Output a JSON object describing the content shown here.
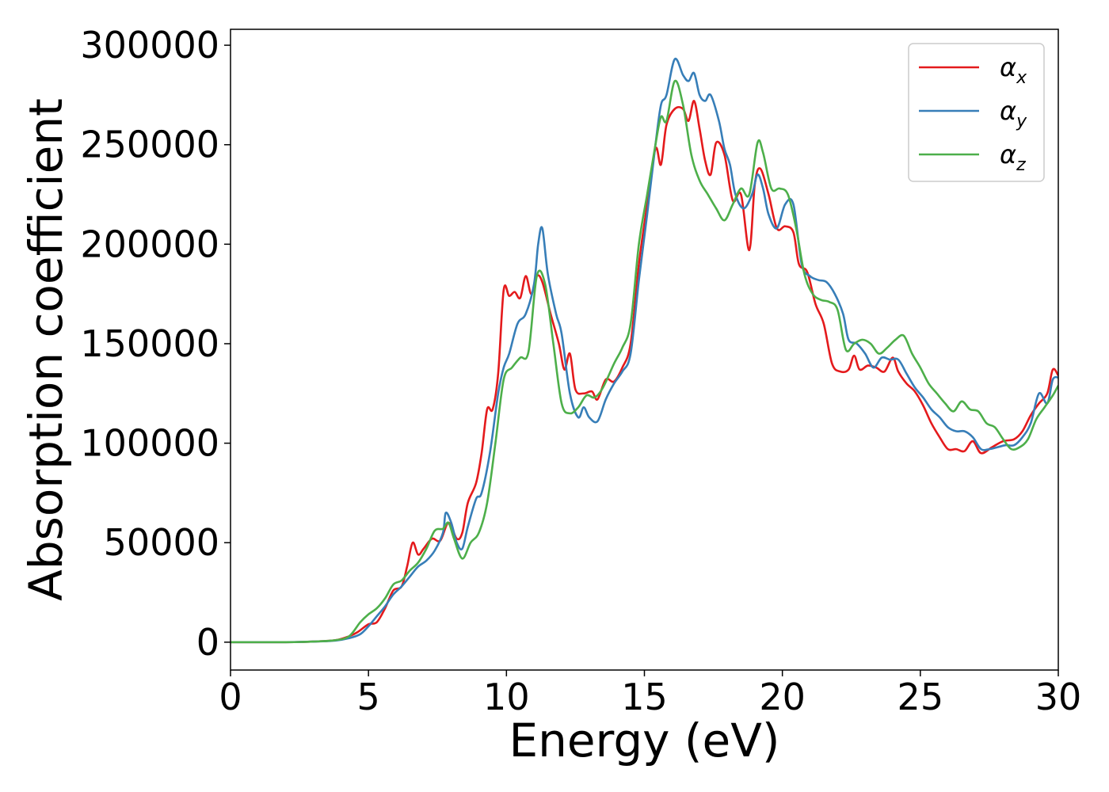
{
  "chart_data": {
    "type": "line",
    "title": "",
    "xlabel": "Energy (eV)",
    "ylabel": "Absorption coefficient",
    "xlim": [
      0,
      30
    ],
    "ylim": [
      -14000,
      308000
    ],
    "xticks": [
      0,
      5,
      10,
      15,
      20,
      25,
      30
    ],
    "yticks": [
      0,
      50000,
      100000,
      150000,
      200000,
      250000,
      300000
    ],
    "grid": false,
    "legend_position": "top-right",
    "series": [
      {
        "name": "αx",
        "label_base": "α",
        "label_sub": "x",
        "color": "#e41a1c",
        "points": [
          [
            0,
            0
          ],
          [
            2,
            0
          ],
          [
            3,
            300
          ],
          [
            3.8,
            1000
          ],
          [
            4.3,
            3000
          ],
          [
            4.6,
            5000
          ],
          [
            5,
            9000
          ],
          [
            5.3,
            10000
          ],
          [
            5.6,
            17000
          ],
          [
            5.9,
            26000
          ],
          [
            6.2,
            28000
          ],
          [
            6.4,
            38000
          ],
          [
            6.6,
            50000
          ],
          [
            6.8,
            44000
          ],
          [
            7,
            47000
          ],
          [
            7.3,
            52000
          ],
          [
            7.6,
            51000
          ],
          [
            7.9,
            60000
          ],
          [
            8.2,
            52000
          ],
          [
            8.4,
            55000
          ],
          [
            8.6,
            70000
          ],
          [
            8.9,
            80000
          ],
          [
            9.1,
            95000
          ],
          [
            9.3,
            117000
          ],
          [
            9.5,
            117000
          ],
          [
            9.7,
            135000
          ],
          [
            9.9,
            177000
          ],
          [
            10.1,
            174000
          ],
          [
            10.3,
            176000
          ],
          [
            10.5,
            173000
          ],
          [
            10.7,
            184000
          ],
          [
            10.9,
            175000
          ],
          [
            11.1,
            184000
          ],
          [
            11.3,
            181000
          ],
          [
            11.6,
            165000
          ],
          [
            11.9,
            150000
          ],
          [
            12.1,
            137000
          ],
          [
            12.3,
            145000
          ],
          [
            12.5,
            127000
          ],
          [
            12.8,
            125000
          ],
          [
            13.1,
            126000
          ],
          [
            13.3,
            122000
          ],
          [
            13.6,
            132000
          ],
          [
            13.9,
            131000
          ],
          [
            14.2,
            138000
          ],
          [
            14.5,
            150000
          ],
          [
            14.8,
            190000
          ],
          [
            15.1,
            220000
          ],
          [
            15.4,
            248000
          ],
          [
            15.6,
            240000
          ],
          [
            15.8,
            260000
          ],
          [
            16.1,
            268000
          ],
          [
            16.4,
            268000
          ],
          [
            16.6,
            262000
          ],
          [
            16.8,
            272000
          ],
          [
            17,
            258000
          ],
          [
            17.2,
            242000
          ],
          [
            17.4,
            235000
          ],
          [
            17.6,
            251000
          ],
          [
            17.9,
            245000
          ],
          [
            18.2,
            222000
          ],
          [
            18.5,
            225000
          ],
          [
            18.8,
            197000
          ],
          [
            19,
            230000
          ],
          [
            19.2,
            238000
          ],
          [
            19.5,
            225000
          ],
          [
            19.8,
            208000
          ],
          [
            20.1,
            209000
          ],
          [
            20.4,
            206000
          ],
          [
            20.6,
            190000
          ],
          [
            20.9,
            186000
          ],
          [
            21.2,
            170000
          ],
          [
            21.5,
            160000
          ],
          [
            21.8,
            140000
          ],
          [
            22.1,
            136000
          ],
          [
            22.4,
            137000
          ],
          [
            22.6,
            144000
          ],
          [
            22.8,
            137000
          ],
          [
            23.1,
            139000
          ],
          [
            23.4,
            138000
          ],
          [
            23.7,
            136000
          ],
          [
            24,
            143000
          ],
          [
            24.2,
            136000
          ],
          [
            24.5,
            130000
          ],
          [
            24.8,
            126000
          ],
          [
            25.1,
            119000
          ],
          [
            25.4,
            110000
          ],
          [
            25.7,
            103000
          ],
          [
            26,
            97000
          ],
          [
            26.3,
            97000
          ],
          [
            26.6,
            96000
          ],
          [
            26.9,
            101000
          ],
          [
            27.2,
            95000
          ],
          [
            27.6,
            98000
          ],
          [
            28,
            101000
          ],
          [
            28.4,
            102000
          ],
          [
            28.7,
            106000
          ],
          [
            29,
            114000
          ],
          [
            29.3,
            120000
          ],
          [
            29.6,
            125000
          ],
          [
            29.8,
            137000
          ],
          [
            30,
            134000
          ]
        ]
      },
      {
        "name": "αy",
        "label_base": "α",
        "label_sub": "y",
        "color": "#377eb8",
        "points": [
          [
            0,
            0
          ],
          [
            2,
            0
          ],
          [
            3,
            300
          ],
          [
            3.8,
            800
          ],
          [
            4.3,
            2000
          ],
          [
            4.7,
            4000
          ],
          [
            5,
            8000
          ],
          [
            5.3,
            13000
          ],
          [
            5.6,
            18000
          ],
          [
            5.9,
            24000
          ],
          [
            6.2,
            28000
          ],
          [
            6.5,
            33000
          ],
          [
            6.8,
            38000
          ],
          [
            7.1,
            41000
          ],
          [
            7.4,
            46000
          ],
          [
            7.7,
            55000
          ],
          [
            7.8,
            65000
          ],
          [
            8,
            60000
          ],
          [
            8.2,
            50000
          ],
          [
            8.4,
            47000
          ],
          [
            8.6,
            58000
          ],
          [
            8.9,
            72000
          ],
          [
            9.1,
            75000
          ],
          [
            9.4,
            95000
          ],
          [
            9.7,
            125000
          ],
          [
            9.9,
            138000
          ],
          [
            10.1,
            145000
          ],
          [
            10.4,
            160000
          ],
          [
            10.7,
            165000
          ],
          [
            11,
            180000
          ],
          [
            11.15,
            200000
          ],
          [
            11.3,
            208000
          ],
          [
            11.5,
            185000
          ],
          [
            11.8,
            165000
          ],
          [
            12,
            155000
          ],
          [
            12.3,
            125000
          ],
          [
            12.6,
            113000
          ],
          [
            12.8,
            118000
          ],
          [
            13,
            113000
          ],
          [
            13.3,
            111000
          ],
          [
            13.6,
            122000
          ],
          [
            13.9,
            130000
          ],
          [
            14.2,
            136000
          ],
          [
            14.5,
            145000
          ],
          [
            14.8,
            182000
          ],
          [
            15.1,
            215000
          ],
          [
            15.4,
            250000
          ],
          [
            15.6,
            270000
          ],
          [
            15.8,
            275000
          ],
          [
            16.1,
            293000
          ],
          [
            16.4,
            285000
          ],
          [
            16.6,
            282000
          ],
          [
            16.8,
            286000
          ],
          [
            17,
            275000
          ],
          [
            17.2,
            272000
          ],
          [
            17.4,
            275000
          ],
          [
            17.7,
            262000
          ],
          [
            17.9,
            248000
          ],
          [
            18.1,
            240000
          ],
          [
            18.3,
            225000
          ],
          [
            18.6,
            218000
          ],
          [
            18.9,
            225000
          ],
          [
            19.1,
            235000
          ],
          [
            19.3,
            228000
          ],
          [
            19.5,
            215000
          ],
          [
            19.8,
            208000
          ],
          [
            20.1,
            220000
          ],
          [
            20.4,
            220000
          ],
          [
            20.7,
            190000
          ],
          [
            21,
            184000
          ],
          [
            21.3,
            182000
          ],
          [
            21.6,
            181000
          ],
          [
            21.9,
            175000
          ],
          [
            22.2,
            165000
          ],
          [
            22.4,
            152000
          ],
          [
            22.7,
            150000
          ],
          [
            23,
            145000
          ],
          [
            23.3,
            138000
          ],
          [
            23.6,
            143000
          ],
          [
            23.9,
            142000
          ],
          [
            24.2,
            142000
          ],
          [
            24.5,
            135000
          ],
          [
            24.8,
            128000
          ],
          [
            25.1,
            123000
          ],
          [
            25.4,
            117000
          ],
          [
            25.7,
            113000
          ],
          [
            26,
            108000
          ],
          [
            26.3,
            106000
          ],
          [
            26.6,
            106000
          ],
          [
            26.9,
            103000
          ],
          [
            27.2,
            97000
          ],
          [
            27.5,
            97000
          ],
          [
            27.8,
            98000
          ],
          [
            28.1,
            99000
          ],
          [
            28.4,
            99000
          ],
          [
            28.7,
            103000
          ],
          [
            29,
            110000
          ],
          [
            29.3,
            125000
          ],
          [
            29.6,
            120000
          ],
          [
            29.8,
            132000
          ],
          [
            30,
            133000
          ]
        ]
      },
      {
        "name": "αz",
        "label_base": "α",
        "label_sub": "z",
        "color": "#4daf4a",
        "points": [
          [
            0,
            0
          ],
          [
            2,
            0
          ],
          [
            3,
            300
          ],
          [
            3.8,
            1000
          ],
          [
            4.3,
            3000
          ],
          [
            4.7,
            10000
          ],
          [
            5,
            14000
          ],
          [
            5.3,
            17000
          ],
          [
            5.6,
            22000
          ],
          [
            5.9,
            29000
          ],
          [
            6.2,
            31000
          ],
          [
            6.5,
            36000
          ],
          [
            6.8,
            40000
          ],
          [
            7.1,
            47000
          ],
          [
            7.4,
            56000
          ],
          [
            7.7,
            57000
          ],
          [
            7.9,
            60000
          ],
          [
            8.1,
            52000
          ],
          [
            8.4,
            42000
          ],
          [
            8.7,
            50000
          ],
          [
            9,
            55000
          ],
          [
            9.3,
            70000
          ],
          [
            9.6,
            100000
          ],
          [
            9.9,
            132000
          ],
          [
            10.2,
            138000
          ],
          [
            10.5,
            143000
          ],
          [
            10.8,
            146000
          ],
          [
            11.1,
            184000
          ],
          [
            11.4,
            180000
          ],
          [
            11.7,
            150000
          ],
          [
            12,
            120000
          ],
          [
            12.3,
            115000
          ],
          [
            12.6,
            118000
          ],
          [
            12.9,
            124000
          ],
          [
            13.2,
            123000
          ],
          [
            13.5,
            128000
          ],
          [
            13.9,
            140000
          ],
          [
            14.2,
            148000
          ],
          [
            14.5,
            160000
          ],
          [
            14.8,
            200000
          ],
          [
            15.1,
            225000
          ],
          [
            15.4,
            250000
          ],
          [
            15.6,
            264000
          ],
          [
            15.8,
            262000
          ],
          [
            16.1,
            282000
          ],
          [
            16.4,
            270000
          ],
          [
            16.7,
            245000
          ],
          [
            17,
            232000
          ],
          [
            17.3,
            225000
          ],
          [
            17.6,
            218000
          ],
          [
            17.9,
            212000
          ],
          [
            18.2,
            220000
          ],
          [
            18.5,
            228000
          ],
          [
            18.8,
            225000
          ],
          [
            19.1,
            251000
          ],
          [
            19.3,
            246000
          ],
          [
            19.6,
            228000
          ],
          [
            19.9,
            228000
          ],
          [
            20.2,
            225000
          ],
          [
            20.5,
            208000
          ],
          [
            20.8,
            185000
          ],
          [
            21.1,
            175000
          ],
          [
            21.4,
            172000
          ],
          [
            21.7,
            171000
          ],
          [
            22,
            167000
          ],
          [
            22.3,
            147000
          ],
          [
            22.6,
            150000
          ],
          [
            22.9,
            152000
          ],
          [
            23.2,
            150000
          ],
          [
            23.5,
            145000
          ],
          [
            23.8,
            148000
          ],
          [
            24.1,
            152000
          ],
          [
            24.4,
            154000
          ],
          [
            24.7,
            145000
          ],
          [
            25,
            138000
          ],
          [
            25.3,
            130000
          ],
          [
            25.6,
            125000
          ],
          [
            25.9,
            120000
          ],
          [
            26.2,
            116000
          ],
          [
            26.5,
            121000
          ],
          [
            26.8,
            117000
          ],
          [
            27.1,
            116000
          ],
          [
            27.4,
            110000
          ],
          [
            27.7,
            108000
          ],
          [
            28,
            102000
          ],
          [
            28.3,
            97000
          ],
          [
            28.6,
            98000
          ],
          [
            28.9,
            102000
          ],
          [
            29.2,
            112000
          ],
          [
            29.5,
            118000
          ],
          [
            29.8,
            124000
          ],
          [
            30,
            129000
          ]
        ]
      }
    ]
  }
}
